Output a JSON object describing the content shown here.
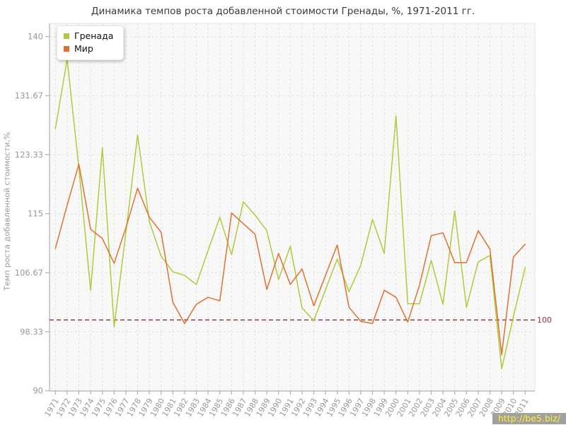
{
  "title": "Динамика темпов роста добавленной стоимости Гренады, %, 1971-2011 гг.",
  "watermark": "http://be5.biz/",
  "legend": {
    "items": [
      "Гренада",
      "Мир"
    ]
  },
  "chart_data": {
    "type": "line",
    "title": "Динамика темпов роста добавленной стоимости Гренады, %, 1971-2011 гг.",
    "xlabel": "",
    "ylabel": "Темп роста добавленной стоимости,%",
    "x": [
      1971,
      1972,
      1973,
      1974,
      1975,
      1976,
      1977,
      1978,
      1979,
      1980,
      1981,
      1982,
      1983,
      1984,
      1985,
      1986,
      1987,
      1988,
      1989,
      1990,
      1991,
      1992,
      1993,
      1994,
      1995,
      1996,
      1997,
      1998,
      1999,
      2000,
      2001,
      2002,
      2003,
      2004,
      2005,
      2006,
      2007,
      2008,
      2009,
      2010,
      2011
    ],
    "series": [
      {
        "name": "Гренада",
        "color": "#aecb3c",
        "values": [
          127.0,
          136.8,
          121.5,
          104.2,
          124.3,
          99.0,
          112.3,
          126.1,
          113.9,
          109.0,
          106.8,
          106.3,
          105.0,
          109.8,
          114.5,
          109.2,
          116.7,
          114.8,
          112.6,
          105.7,
          110.4,
          101.7,
          99.9,
          104.3,
          108.6,
          104.0,
          107.7,
          114.2,
          109.4,
          128.8,
          102.3,
          102.3,
          108.4,
          102.2,
          115.4,
          101.8,
          108.2,
          109.1,
          93.1,
          100.5,
          107.4
        ]
      },
      {
        "name": "Мир",
        "color": "#e1702f",
        "values": [
          110.1,
          116.2,
          122.0,
          112.8,
          111.5,
          108.0,
          113.0,
          118.6,
          114.5,
          112.4,
          102.5,
          99.5,
          102.2,
          103.2,
          102.7,
          115.1,
          113.6,
          112.1,
          104.3,
          109.4,
          105.0,
          107.2,
          102.0,
          106.3,
          110.6,
          101.8,
          99.8,
          99.5,
          104.2,
          103.2,
          99.7,
          104.9,
          111.9,
          112.3,
          108.1,
          108.1,
          112.6,
          110.0,
          95.1,
          108.9,
          110.7
        ]
      }
    ],
    "ylim": [
      90,
      140
    ],
    "y_ticks": [
      90,
      98.33,
      106.67,
      115,
      123.33,
      131.67,
      140
    ],
    "y_tick_labels": [
      "90",
      "98.33",
      "106.67",
      "115",
      "123.33",
      "131.67",
      "140"
    ],
    "reference_line": {
      "value": 100,
      "label": "100",
      "color": "#9e2b36"
    },
    "grid": true,
    "legend_position": "top-left",
    "colors": {
      "plot_bg": "#f8f8f8",
      "grid": "#e2e2e2",
      "axis": "#b0b0b0",
      "tick_text": "#999999",
      "title_text": "#3a3a3a"
    }
  }
}
